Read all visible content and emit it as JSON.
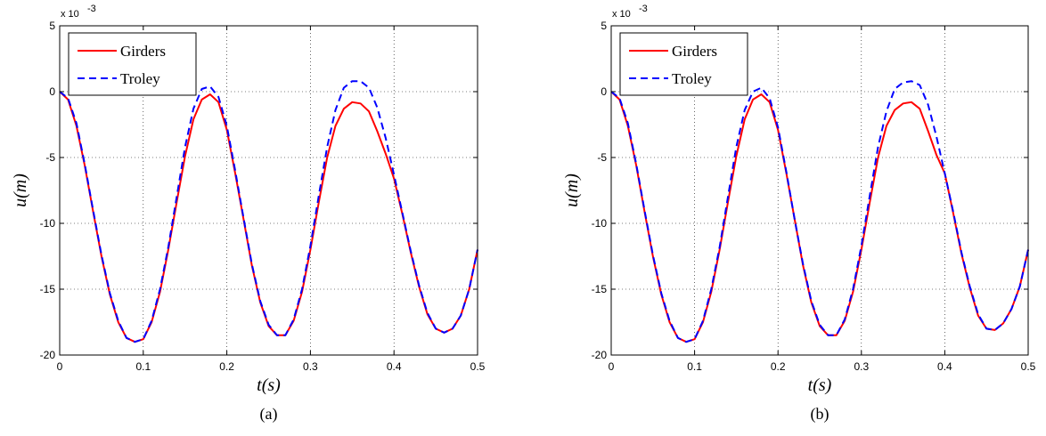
{
  "chart_data": [
    {
      "type": "line",
      "caption": "(a)",
      "xlabel": "t(s)",
      "ylabel": "u(m)",
      "exponent_label": "x 10",
      "exponent_power": "-3",
      "xlim": [
        0,
        0.5
      ],
      "ylim": [
        -20,
        5
      ],
      "xticks": [
        "0",
        "0.1",
        "0.2",
        "0.3",
        "0.4",
        "0.5"
      ],
      "yticks": [
        "5",
        "0",
        "-5",
        "-10",
        "-15",
        "-20"
      ],
      "grid": true,
      "legend_position": "top-left",
      "series": [
        {
          "name": "Girders",
          "color": "#ff0000",
          "style": "solid",
          "x": [
            0,
            0.01,
            0.02,
            0.03,
            0.04,
            0.05,
            0.06,
            0.07,
            0.08,
            0.09,
            0.1,
            0.11,
            0.12,
            0.13,
            0.14,
            0.15,
            0.16,
            0.17,
            0.18,
            0.19,
            0.2,
            0.21,
            0.22,
            0.23,
            0.24,
            0.25,
            0.26,
            0.27,
            0.28,
            0.29,
            0.3,
            0.31,
            0.32,
            0.33,
            0.34,
            0.35,
            0.36,
            0.37,
            0.38,
            0.39,
            0.4,
            0.41,
            0.42,
            0.43,
            0.44,
            0.45,
            0.46,
            0.47,
            0.48,
            0.49,
            0.5
          ],
          "y": [
            0,
            -0.6,
            -2.6,
            -5.6,
            -9.1,
            -12.5,
            -15.4,
            -17.5,
            -18.7,
            -19.0,
            -18.8,
            -17.5,
            -15.2,
            -12.0,
            -8.4,
            -4.9,
            -2.1,
            -0.6,
            -0.2,
            -0.8,
            -2.9,
            -6.2,
            -9.7,
            -13.2,
            -16.0,
            -17.8,
            -18.5,
            -18.5,
            -17.4,
            -15.2,
            -12.0,
            -8.4,
            -5.0,
            -2.6,
            -1.3,
            -0.8,
            -0.9,
            -1.5,
            -3.0,
            -4.7,
            -6.6,
            -9.3,
            -12.2,
            -14.8,
            -16.9,
            -18.0,
            -18.3,
            -18.0,
            -17.0,
            -15.0,
            -12.0
          ]
        },
        {
          "name": "Troley",
          "color": "#0000ff",
          "style": "dashed",
          "x": [
            0,
            0.01,
            0.02,
            0.03,
            0.04,
            0.05,
            0.06,
            0.07,
            0.08,
            0.09,
            0.1,
            0.11,
            0.12,
            0.13,
            0.14,
            0.15,
            0.16,
            0.17,
            0.18,
            0.19,
            0.2,
            0.21,
            0.22,
            0.23,
            0.24,
            0.25,
            0.26,
            0.27,
            0.28,
            0.29,
            0.3,
            0.31,
            0.32,
            0.33,
            0.34,
            0.35,
            0.36,
            0.37,
            0.38,
            0.39,
            0.4,
            0.41,
            0.42,
            0.43,
            0.44,
            0.45,
            0.46,
            0.47,
            0.48,
            0.49,
            0.5
          ],
          "y": [
            0,
            -0.5,
            -2.4,
            -5.5,
            -9.0,
            -12.4,
            -15.3,
            -17.4,
            -18.7,
            -19.0,
            -18.8,
            -17.4,
            -15.0,
            -11.8,
            -8.0,
            -4.2,
            -1.3,
            0.2,
            0.4,
            -0.4,
            -2.6,
            -6.0,
            -9.6,
            -13.1,
            -15.9,
            -17.7,
            -18.5,
            -18.5,
            -17.3,
            -15.0,
            -11.7,
            -7.9,
            -4.2,
            -1.4,
            0.3,
            0.8,
            0.8,
            0.3,
            -1.2,
            -3.5,
            -6.3,
            -9.2,
            -12.1,
            -14.7,
            -16.8,
            -18.0,
            -18.3,
            -18.0,
            -17.0,
            -15.0,
            -12.0
          ]
        }
      ]
    },
    {
      "type": "line",
      "caption": "(b)",
      "xlabel": "t(s)",
      "ylabel": "u(m)",
      "exponent_label": "x 10",
      "exponent_power": "-3",
      "xlim": [
        0,
        0.5
      ],
      "ylim": [
        -20,
        5
      ],
      "xticks": [
        "0",
        "0.1",
        "0.2",
        "0.3",
        "0.4",
        "0.5"
      ],
      "yticks": [
        "5",
        "0",
        "-5",
        "-10",
        "-15",
        "-20"
      ],
      "grid": true,
      "legend_position": "top-left",
      "series": [
        {
          "name": "Girders",
          "color": "#ff0000",
          "style": "solid",
          "x": [
            0,
            0.01,
            0.02,
            0.03,
            0.04,
            0.05,
            0.06,
            0.07,
            0.08,
            0.09,
            0.1,
            0.11,
            0.12,
            0.13,
            0.14,
            0.15,
            0.16,
            0.17,
            0.18,
            0.19,
            0.2,
            0.21,
            0.22,
            0.23,
            0.24,
            0.25,
            0.26,
            0.27,
            0.28,
            0.29,
            0.3,
            0.31,
            0.32,
            0.33,
            0.34,
            0.35,
            0.36,
            0.37,
            0.38,
            0.39,
            0.4,
            0.41,
            0.42,
            0.43,
            0.44,
            0.45,
            0.46,
            0.47,
            0.48,
            0.49,
            0.5
          ],
          "y": [
            0,
            -0.6,
            -2.6,
            -5.6,
            -9.1,
            -12.5,
            -15.4,
            -17.5,
            -18.7,
            -19.0,
            -18.8,
            -17.5,
            -15.2,
            -12.0,
            -8.4,
            -4.9,
            -2.1,
            -0.6,
            -0.2,
            -0.8,
            -2.9,
            -6.2,
            -9.7,
            -13.2,
            -16.0,
            -17.8,
            -18.5,
            -18.5,
            -17.4,
            -15.2,
            -12.0,
            -8.4,
            -5.0,
            -2.6,
            -1.4,
            -0.9,
            -0.8,
            -1.3,
            -3.0,
            -4.8,
            -6.2,
            -9.2,
            -12.3,
            -14.9,
            -17.0,
            -18.0,
            -18.1,
            -17.6,
            -16.5,
            -14.8,
            -12.0
          ]
        },
        {
          "name": "Troley",
          "color": "#0000ff",
          "style": "dashed",
          "x": [
            0,
            0.01,
            0.02,
            0.03,
            0.04,
            0.05,
            0.06,
            0.07,
            0.08,
            0.09,
            0.1,
            0.11,
            0.12,
            0.13,
            0.14,
            0.15,
            0.16,
            0.17,
            0.18,
            0.19,
            0.2,
            0.21,
            0.22,
            0.23,
            0.24,
            0.25,
            0.26,
            0.27,
            0.28,
            0.29,
            0.3,
            0.31,
            0.32,
            0.33,
            0.34,
            0.35,
            0.36,
            0.37,
            0.38,
            0.39,
            0.4,
            0.41,
            0.42,
            0.43,
            0.44,
            0.45,
            0.46,
            0.47,
            0.48,
            0.49,
            0.5
          ],
          "y": [
            0,
            -0.5,
            -2.4,
            -5.5,
            -9.0,
            -12.4,
            -15.3,
            -17.4,
            -18.7,
            -19.0,
            -18.8,
            -17.4,
            -15.0,
            -11.8,
            -8.0,
            -4.2,
            -1.4,
            0.0,
            0.3,
            -0.5,
            -2.7,
            -6.1,
            -9.7,
            -13.1,
            -15.9,
            -17.7,
            -18.5,
            -18.5,
            -17.3,
            -15.0,
            -11.7,
            -7.9,
            -4.2,
            -1.5,
            0.2,
            0.7,
            0.8,
            0.5,
            -1.0,
            -3.4,
            -6.2,
            -9.1,
            -12.2,
            -14.8,
            -16.9,
            -18.0,
            -18.1,
            -17.6,
            -16.5,
            -14.8,
            -12.0
          ]
        }
      ]
    }
  ]
}
